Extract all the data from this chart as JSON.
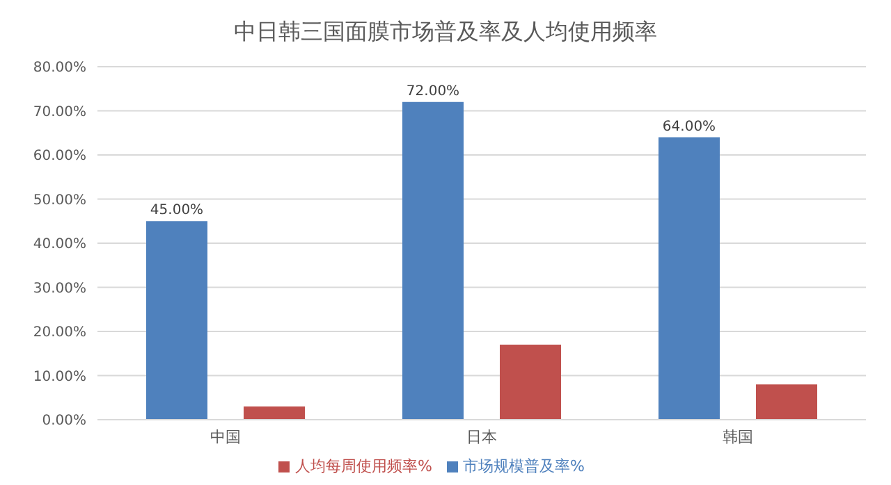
{
  "chart_data": {
    "type": "bar",
    "title": "中日韩三国面膜市场普及率及人均使用频率",
    "categories": [
      "中国",
      "日本",
      "韩国"
    ],
    "series": [
      {
        "name": "市场规模普及率%",
        "color": "#4f81bd",
        "values": [
          45,
          72,
          64
        ],
        "value_labels": [
          "45.00%",
          "72.00%",
          "64.00%"
        ]
      },
      {
        "name": "人均每周使用频率%",
        "color": "#c0504d",
        "values": [
          3,
          17,
          8
        ]
      }
    ],
    "ylim": [
      0,
      80
    ],
    "yticks": [
      {
        "value": 0,
        "label": "0.00%"
      },
      {
        "value": 10,
        "label": "10.00%"
      },
      {
        "value": 20,
        "label": "20.00%"
      },
      {
        "value": 30,
        "label": "30.00%"
      },
      {
        "value": 40,
        "label": "40.00%"
      },
      {
        "value": 50,
        "label": "50.00%"
      },
      {
        "value": 60,
        "label": "60.00%"
      },
      {
        "value": 70,
        "label": "70.00%"
      },
      {
        "value": 80,
        "label": "80.00%"
      }
    ],
    "grid": "y",
    "legend": "bottom"
  }
}
